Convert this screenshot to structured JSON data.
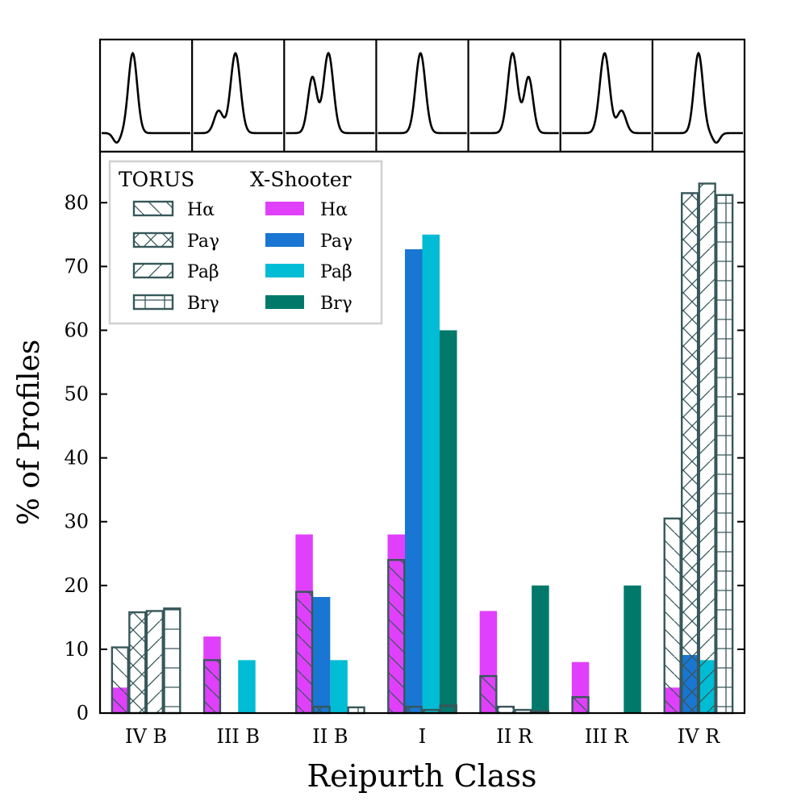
{
  "chart_data": {
    "type": "bar",
    "xlabel": "Reipurth Class",
    "ylabel": "% of Profiles",
    "ylim": [
      0,
      88
    ],
    "yticks": [
      0,
      10,
      20,
      30,
      40,
      50,
      60,
      70,
      80
    ],
    "categories": [
      "IV B",
      "III B",
      "II B",
      "I",
      "II R",
      "III R",
      "IV R"
    ],
    "grid": false,
    "legend_position": "top-left",
    "legend": {
      "torus_title": "TORUS",
      "xshooter_title": "X-Shooter"
    },
    "torus_series": [
      {
        "name": "Hα",
        "hatch": "backslash",
        "values": [
          10.3,
          8.3,
          19.0,
          24.0,
          5.8,
          2.5,
          30.5
        ]
      },
      {
        "name": "Paγ",
        "hatch": "cross",
        "values": [
          15.8,
          0,
          1.0,
          1.0,
          1.0,
          0,
          81.5
        ]
      },
      {
        "name": "Paβ",
        "hatch": "slash",
        "values": [
          16.0,
          0,
          0,
          0.5,
          0.5,
          0,
          83.0
        ]
      },
      {
        "name": "Brγ",
        "hatch": "plus",
        "values": [
          16.4,
          0,
          0.9,
          1.2,
          0.3,
          0,
          81.2
        ]
      }
    ],
    "xshooter_series": [
      {
        "name": "Hα",
        "color": "#e040fb",
        "values": [
          4.0,
          12.0,
          28.0,
          28.0,
          16.0,
          8.0,
          4.0
        ]
      },
      {
        "name": "Paγ",
        "color": "#1976d2",
        "values": [
          0,
          0,
          18.2,
          72.7,
          0,
          0,
          9.1
        ]
      },
      {
        "name": "Paβ",
        "color": "#00bcd4",
        "values": [
          0,
          8.3,
          8.3,
          75.0,
          0,
          0,
          8.3
        ]
      },
      {
        "name": "Brγ",
        "color": "#00796b",
        "values": [
          0,
          0,
          0,
          60.0,
          20.0,
          20.0,
          0
        ]
      }
    ],
    "hatch_edge_color": "#37575a",
    "profile_panels": [
      {
        "class": "IV B",
        "components": [
          {
            "mu": 0.35,
            "sigma": 0.05,
            "amp": 1.0
          },
          {
            "mu": 0.17,
            "sigma": 0.04,
            "amp": -0.12
          }
        ]
      },
      {
        "class": "III B",
        "components": [
          {
            "mu": 0.47,
            "sigma": 0.055,
            "amp": 1.0
          },
          {
            "mu": 0.28,
            "sigma": 0.05,
            "amp": 0.28
          }
        ]
      },
      {
        "class": "II B",
        "components": [
          {
            "mu": 0.48,
            "sigma": 0.055,
            "amp": 1.0
          },
          {
            "mu": 0.3,
            "sigma": 0.05,
            "amp": 0.7
          }
        ]
      },
      {
        "class": "I",
        "components": [
          {
            "mu": 0.48,
            "sigma": 0.055,
            "amp": 1.0
          }
        ]
      },
      {
        "class": "II R",
        "components": [
          {
            "mu": 0.48,
            "sigma": 0.055,
            "amp": 1.0
          },
          {
            "mu": 0.66,
            "sigma": 0.05,
            "amp": 0.7
          }
        ]
      },
      {
        "class": "III R",
        "components": [
          {
            "mu": 0.48,
            "sigma": 0.055,
            "amp": 1.0
          },
          {
            "mu": 0.67,
            "sigma": 0.05,
            "amp": 0.28
          }
        ]
      },
      {
        "class": "IV R",
        "components": [
          {
            "mu": 0.5,
            "sigma": 0.05,
            "amp": 1.0
          },
          {
            "mu": 0.7,
            "sigma": 0.04,
            "amp": -0.12
          }
        ]
      }
    ]
  }
}
